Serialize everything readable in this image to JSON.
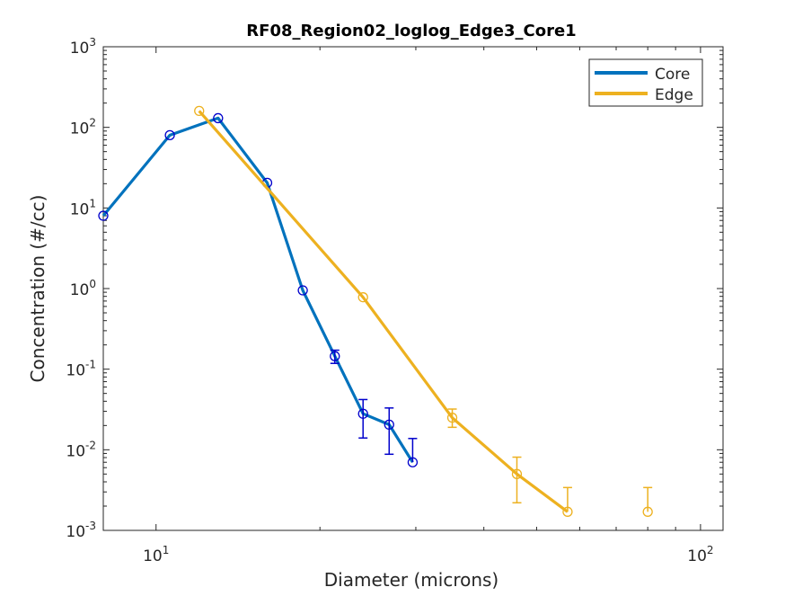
{
  "chart_data": {
    "type": "line",
    "title": "RF08_Region02_loglog_Edge3_Core1",
    "xlabel": "Diameter (microns)",
    "ylabel": "Concentration (#/cc)",
    "xscale": "log",
    "yscale": "log",
    "xlim": [
      8,
      110
    ],
    "ylim": [
      0.001,
      1000
    ],
    "grid": false,
    "legend_position": "top-right",
    "x_ticks": [
      {
        "value": 10,
        "base": "10",
        "exp": "1"
      },
      {
        "value": 100,
        "base": "10",
        "exp": "2"
      }
    ],
    "y_ticks": [
      {
        "value": 0.001,
        "base": "10",
        "exp": "-3"
      },
      {
        "value": 0.01,
        "base": "10",
        "exp": "-2"
      },
      {
        "value": 0.1,
        "base": "10",
        "exp": "-1"
      },
      {
        "value": 1,
        "base": "10",
        "exp": "0"
      },
      {
        "value": 10,
        "base": "10",
        "exp": "1"
      },
      {
        "value": 100,
        "base": "10",
        "exp": "2"
      },
      {
        "value": 1000,
        "base": "10",
        "exp": "3"
      }
    ],
    "series": [
      {
        "name": "Core",
        "color": "#0072BD",
        "marker_color": "#0000CC",
        "line_end": 9,
        "x": [
          8.0,
          10.6,
          13.0,
          16.0,
          18.6,
          21.3,
          24.0,
          26.8,
          29.6
        ],
        "y": [
          8.0,
          80,
          130,
          20.5,
          0.95,
          0.145,
          0.028,
          0.0205,
          0.007
        ],
        "err_low": [
          null,
          null,
          null,
          null,
          null,
          0.118,
          0.014,
          0.0088,
          null
        ],
        "err_high": [
          null,
          null,
          null,
          null,
          null,
          0.172,
          0.042,
          0.033,
          0.0138
        ]
      },
      {
        "name": "Edge",
        "color": "#EDB120",
        "marker_color": "#EDB120",
        "line_end": 5,
        "x": [
          12.0,
          24.0,
          35.0,
          46.0,
          57.0,
          80.0
        ],
        "y": [
          160,
          0.78,
          0.025,
          0.005,
          0.0017,
          0.0017
        ],
        "err_low": [
          null,
          null,
          0.019,
          0.0022,
          null,
          null
        ],
        "err_high": [
          null,
          null,
          0.032,
          0.0081,
          0.0034,
          0.0034
        ]
      }
    ]
  }
}
